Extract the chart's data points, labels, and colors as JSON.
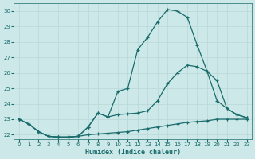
{
  "xlabel": "Humidex (Indice chaleur)",
  "xlim": [
    -0.5,
    23.5
  ],
  "ylim": [
    21.7,
    30.5
  ],
  "yticks": [
    22,
    23,
    24,
    25,
    26,
    27,
    28,
    29,
    30
  ],
  "xticks": [
    0,
    1,
    2,
    3,
    4,
    5,
    6,
    7,
    8,
    9,
    10,
    11,
    12,
    13,
    14,
    15,
    16,
    17,
    18,
    19,
    20,
    21,
    22,
    23
  ],
  "bg_color": "#cce8e8",
  "line_color": "#1a6b6b",
  "grid_color": "#b8d8d8",
  "line1_x": [
    0,
    1,
    2,
    3,
    4,
    5,
    6,
    7,
    8,
    9,
    10,
    11,
    12,
    13,
    14,
    15,
    16,
    17,
    18,
    19,
    20,
    21,
    22,
    23
  ],
  "line1_y": [
    23.0,
    22.7,
    22.2,
    21.9,
    21.85,
    21.85,
    21.9,
    22.0,
    22.05,
    22.1,
    22.15,
    22.2,
    22.3,
    22.4,
    22.5,
    22.6,
    22.7,
    22.8,
    22.85,
    22.9,
    23.0,
    23.0,
    23.0,
    23.0
  ],
  "line2_x": [
    0,
    1,
    2,
    3,
    4,
    5,
    6,
    7,
    8,
    9,
    10,
    11,
    12,
    13,
    14,
    15,
    16,
    17,
    18,
    19,
    20,
    21,
    22,
    23
  ],
  "line2_y": [
    23.0,
    22.7,
    22.2,
    21.9,
    21.85,
    21.85,
    21.9,
    22.5,
    23.4,
    23.15,
    23.3,
    23.35,
    23.4,
    23.55,
    24.2,
    25.3,
    26.0,
    26.5,
    26.4,
    26.1,
    25.5,
    23.7,
    23.3,
    23.1
  ],
  "line3_x": [
    0,
    1,
    2,
    3,
    4,
    5,
    6,
    7,
    8,
    9,
    10,
    11,
    12,
    13,
    14,
    15,
    16,
    17,
    18,
    19,
    20,
    21,
    22,
    23
  ],
  "line3_y": [
    23.0,
    22.7,
    22.2,
    21.9,
    21.85,
    21.85,
    21.9,
    22.5,
    23.4,
    23.15,
    24.8,
    25.0,
    27.5,
    28.3,
    29.3,
    30.1,
    30.0,
    29.6,
    27.8,
    26.1,
    24.2,
    23.7,
    23.3,
    23.1
  ]
}
